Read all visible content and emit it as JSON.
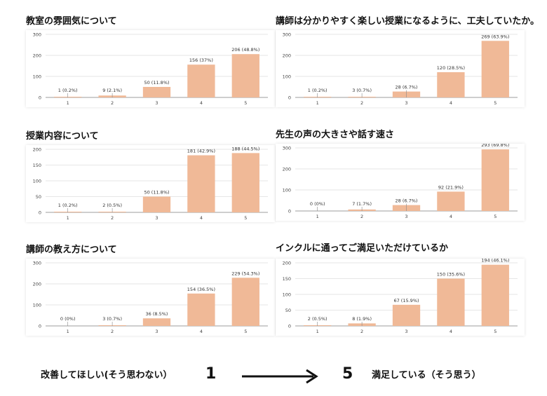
{
  "footer": {
    "left_text": "改善してほしい(そう思わない）",
    "left_number": "1",
    "right_number": "5",
    "right_text": "満足している（そう思う）"
  },
  "colors": {
    "bar": "#f0b997",
    "bar_alt": "#e6ad90",
    "grid": "#e6e6e6",
    "axis": "#9e9e9e"
  },
  "chart_data": [
    {
      "type": "bar",
      "title": "教室の雰囲気について",
      "categories": [
        "1",
        "2",
        "3",
        "4",
        "5"
      ],
      "values": [
        1,
        9,
        50,
        156,
        206
      ],
      "labels": [
        "1 (0.2%)",
        "9 (2.1%)",
        "50 (11.8%)",
        "156 (37%)",
        "206 (48.8%)"
      ],
      "ylim": [
        0,
        300
      ],
      "yticks": [
        0,
        100,
        200,
        300
      ],
      "grid": true
    },
    {
      "type": "bar",
      "title": "講師は分かりやすく楽しい授業になるように、工夫していたか。",
      "categories": [
        "1",
        "2",
        "3",
        "4",
        "5"
      ],
      "values": [
        1,
        3,
        28,
        120,
        269
      ],
      "labels": [
        "1 (0.2%)",
        "3 (0.7%)",
        "28 (6.7%)",
        "120 (28.5%)",
        "269 (63.9%)"
      ],
      "ylim": [
        0,
        300
      ],
      "yticks": [
        0,
        100,
        200,
        300
      ],
      "grid": true
    },
    {
      "type": "bar",
      "title": "授業内容について",
      "categories": [
        "1",
        "2",
        "3",
        "4",
        "5"
      ],
      "values": [
        1,
        2,
        50,
        181,
        188
      ],
      "labels": [
        "1 (0.2%)",
        "2 (0.5%)",
        "50 (11.8%)",
        "181 (42.9%)",
        "188 (44.5%)"
      ],
      "ylim": [
        0,
        200
      ],
      "yticks": [
        0,
        50,
        100,
        150,
        200
      ],
      "grid": true
    },
    {
      "type": "bar",
      "title": "先生の声の大きさや話す速さ",
      "categories": [
        "1",
        "2",
        "3",
        "4",
        "5"
      ],
      "values": [
        0,
        7,
        28,
        92,
        293
      ],
      "labels": [
        "0 (0%)",
        "7 (1.7%)",
        "28 (6.7%)",
        "92 (21.9%)",
        "293 (69.8%)"
      ],
      "ylim": [
        0,
        300
      ],
      "yticks": [
        0,
        100,
        200,
        300
      ],
      "grid": true
    },
    {
      "type": "bar",
      "title": "講師の教え方について",
      "categories": [
        "1",
        "2",
        "3",
        "4",
        "5"
      ],
      "values": [
        0,
        3,
        36,
        154,
        229
      ],
      "labels": [
        "0 (0%)",
        "3 (0.7%)",
        "36 (8.5%)",
        "154 (36.5%)",
        "229 (54.3%)"
      ],
      "ylim": [
        0,
        300
      ],
      "yticks": [
        0,
        100,
        200,
        300
      ],
      "grid": true
    },
    {
      "type": "bar",
      "title": "インクルに通ってご満足いただけているか",
      "categories": [
        "1",
        "2",
        "3",
        "4",
        "5"
      ],
      "values": [
        2,
        8,
        67,
        150,
        194
      ],
      "labels": [
        "2 (0.5%)",
        "8 (1.9%)",
        "67 (15.9%)",
        "150 (35.6%)",
        "194 (46.1%)"
      ],
      "ylim": [
        0,
        200
      ],
      "yticks": [
        0,
        50,
        100,
        150,
        200
      ],
      "grid": true
    }
  ]
}
